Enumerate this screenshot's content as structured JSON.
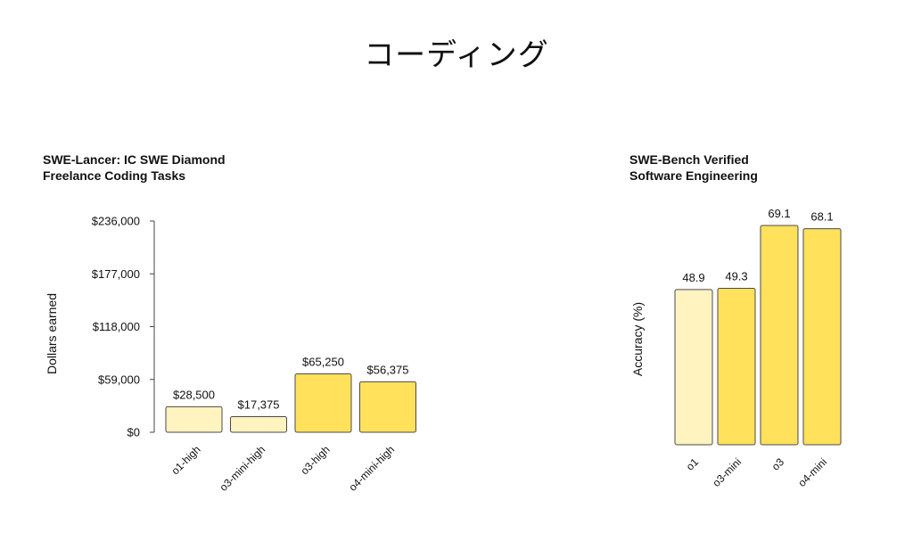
{
  "page": {
    "title": "コーディング"
  },
  "chart_data": [
    {
      "type": "bar",
      "title_lines": [
        "SWE-Lancer: IC SWE Diamond",
        "Freelance Coding Tasks"
      ],
      "ylabel": "Dollars earned",
      "ylim": [
        0,
        236000
      ],
      "yticks": [
        0,
        59000,
        118000,
        177000,
        236000
      ],
      "ytick_labels": [
        "$0",
        "$59,000",
        "$118,000",
        "$177,000",
        "$236,000"
      ],
      "categories": [
        "o1-high",
        "o3-mini-high",
        "o3-high",
        "o4-mini-high"
      ],
      "values": [
        28500,
        17375,
        65250,
        56375
      ],
      "value_labels": [
        "$28,500",
        "$17,375",
        "$65,250",
        "$56,375"
      ],
      "bar_colors": [
        "#FFF3C0",
        "#FFF3C0",
        "#FFE15C",
        "#FFE15C"
      ],
      "grid": false
    },
    {
      "type": "bar",
      "title_lines": [
        "SWE-Bench Verified",
        "Software Engineering"
      ],
      "ylabel": "Accuracy (%)",
      "ylim": [
        0,
        75
      ],
      "categories": [
        "o1",
        "o3-mini",
        "o3",
        "o4-mini"
      ],
      "values": [
        48.9,
        49.3,
        69.1,
        68.1
      ],
      "value_labels": [
        "48.9",
        "49.3",
        "69.1",
        "68.1"
      ],
      "bar_colors": [
        "#FFF3C0",
        "#FFE15C",
        "#FFE15C",
        "#FFE15C"
      ],
      "grid": false
    }
  ],
  "colors": {
    "bar_stroke": "#4a4a4a",
    "axis": "#444444"
  }
}
